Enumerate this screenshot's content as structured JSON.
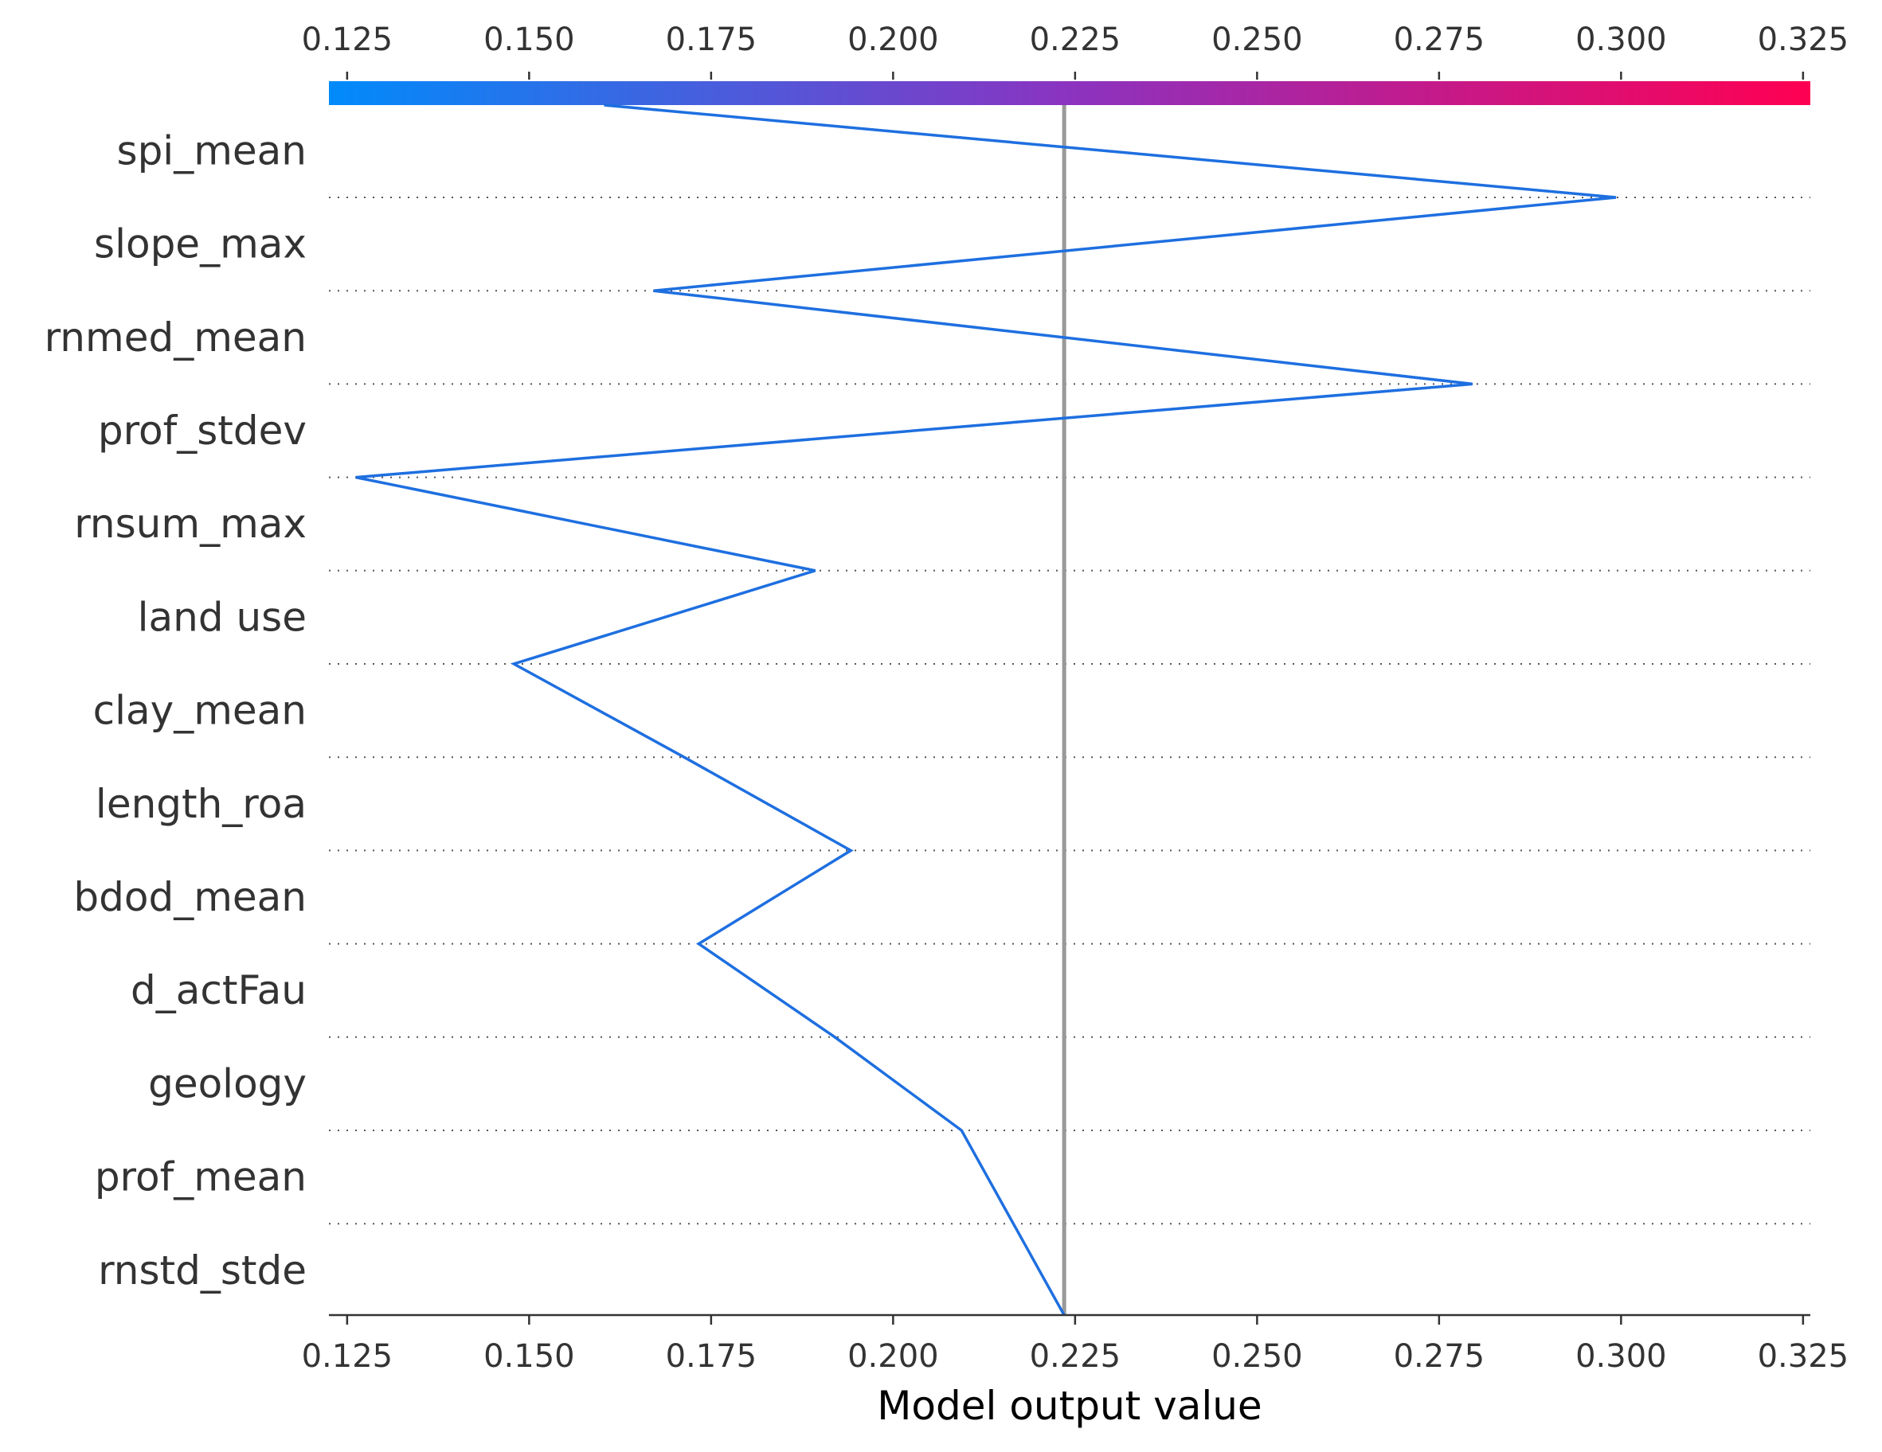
{
  "chart_data": {
    "type": "line",
    "xlabel": "Model output value",
    "xlim": [
      0.1225,
      0.326
    ],
    "x_ticks": [
      "0.125",
      "0.150",
      "0.175",
      "0.200",
      "0.225",
      "0.250",
      "0.275",
      "0.300",
      "0.325"
    ],
    "x_tick_values": [
      0.125,
      0.15,
      0.175,
      0.2,
      0.225,
      0.25,
      0.275,
      0.3,
      0.325
    ],
    "base_value": 0.2235,
    "final_value": 0.1603,
    "features": [
      "spi_mean",
      "slope_max",
      "rnmed_mean",
      "prof_stdev",
      "rnsum_max",
      "land use",
      "clay_mean",
      "length_roa",
      "bdod_mean",
      "d_actFau",
      "geology",
      "prof_mean",
      "rnstd_stde"
    ],
    "path_x": [
      0.1603,
      0.2993,
      0.1671,
      0.2796,
      0.1262,
      0.1893,
      0.1479,
      0.1713,
      0.1942,
      0.1733,
      0.192,
      0.2094,
      0.2235
    ],
    "colorbar": {
      "from": "#008bfb",
      "to": "#ff0052",
      "range": [
        0.1225,
        0.326
      ]
    },
    "colors": {
      "line": "#1e6fe0",
      "base_line": "#999999",
      "axis": "#333333",
      "grid": "#555555"
    }
  }
}
